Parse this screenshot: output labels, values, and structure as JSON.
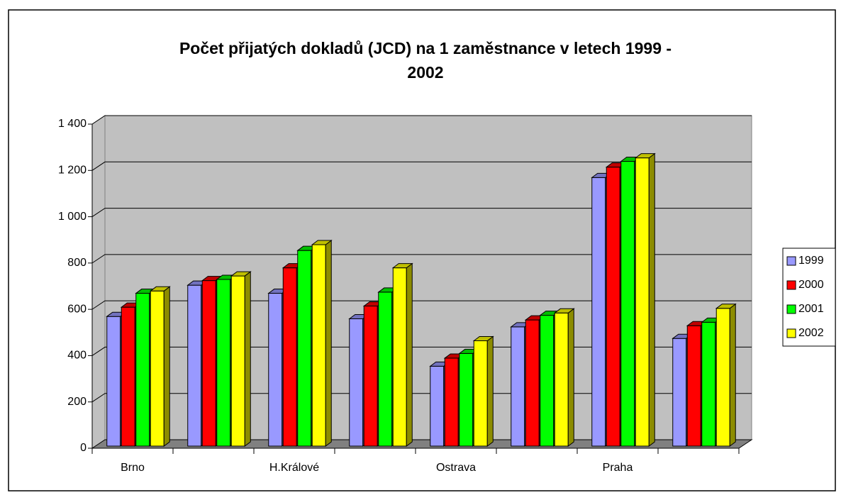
{
  "chart_data": {
    "type": "bar3d",
    "title": "Počet přijatých dokladů (JCD) na 1 zaměstnance v letech 1999 - 2002",
    "categories": [
      "Brno",
      null,
      "H.Králové",
      null,
      "Ostrava",
      null,
      "Praha",
      null
    ],
    "series": [
      {
        "name": "1999",
        "color": "#9999ff",
        "values": [
          560,
          695,
          660,
          550,
          345,
          515,
          1160,
          465
        ]
      },
      {
        "name": "2000",
        "color": "#ff0000",
        "values": [
          600,
          715,
          770,
          605,
          380,
          545,
          1205,
          520
        ]
      },
      {
        "name": "2001",
        "color": "#00ff00",
        "values": [
          660,
          720,
          845,
          665,
          400,
          565,
          1230,
          535
        ]
      },
      {
        "name": "2002",
        "color": "#ffff00",
        "values": [
          670,
          735,
          870,
          770,
          455,
          575,
          1245,
          595
        ]
      }
    ],
    "ylim": [
      0,
      1400
    ],
    "yticks": [
      0,
      200,
      400,
      600,
      800,
      {
        "value": 1000,
        "label": "1 000"
      },
      {
        "value": 1200,
        "label": "1 200"
      },
      {
        "value": 1400,
        "label": "1 400"
      }
    ],
    "grid": true,
    "legend": "right"
  }
}
